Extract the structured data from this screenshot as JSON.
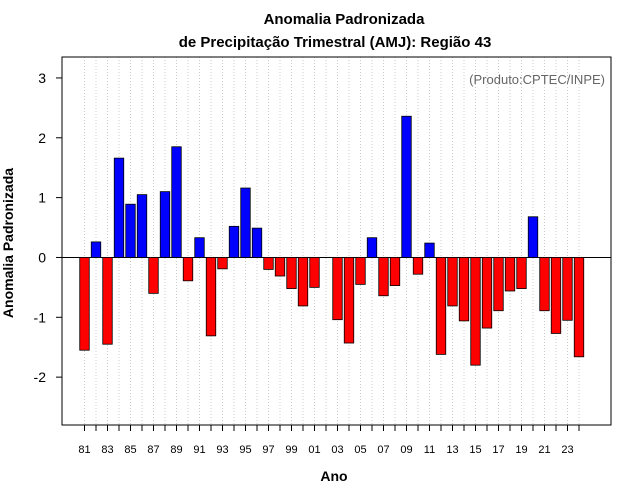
{
  "chart_data": {
    "type": "bar",
    "title": "Anomalia Padronizada",
    "subtitle": "de Precipitação Trimestral (AMJ): Região 43",
    "xlabel": "Ano",
    "ylabel": "Anomalia Padronizada",
    "credit": "(Produto:CPTEC/INPE)",
    "ylim": [
      -2.8,
      3.35
    ],
    "yticks": [
      -2,
      -1,
      0,
      1,
      2,
      3
    ],
    "years": [
      1981,
      1982,
      1983,
      1984,
      1985,
      1986,
      1987,
      1988,
      1989,
      1990,
      1991,
      1992,
      1993,
      1994,
      1995,
      1996,
      1997,
      1998,
      1999,
      2000,
      2001,
      2002,
      2003,
      2004,
      2005,
      2006,
      2007,
      2008,
      2009,
      2010,
      2011,
      2012,
      2013,
      2014,
      2015,
      2016,
      2017,
      2018,
      2019,
      2020,
      2021,
      2022,
      2023,
      2024
    ],
    "tick_labels": [
      "81",
      "83",
      "85",
      "87",
      "89",
      "91",
      "93",
      "95",
      "97",
      "99",
      "01",
      "03",
      "05",
      "07",
      "09",
      "11",
      "13",
      "15",
      "17",
      "19",
      "21",
      "23"
    ],
    "values": [
      -1.55,
      0.26,
      -1.45,
      1.66,
      0.89,
      1.05,
      -0.6,
      1.1,
      1.85,
      -0.39,
      0.33,
      -1.31,
      -0.19,
      0.52,
      1.16,
      0.49,
      -0.2,
      -0.31,
      -0.52,
      -0.81,
      -0.5,
      null,
      -1.04,
      -1.43,
      -0.45,
      0.33,
      -0.64,
      -0.47,
      2.36,
      -0.28,
      0.24,
      -1.62,
      -0.81,
      -1.06,
      -1.8,
      -1.18,
      -0.89,
      -0.56,
      -0.52,
      0.68,
      -0.89,
      -1.27,
      -1.05,
      -1.66
    ],
    "positive_color": "#0000ff",
    "negative_color": "#ff0000",
    "grid": "vertical dotted"
  }
}
